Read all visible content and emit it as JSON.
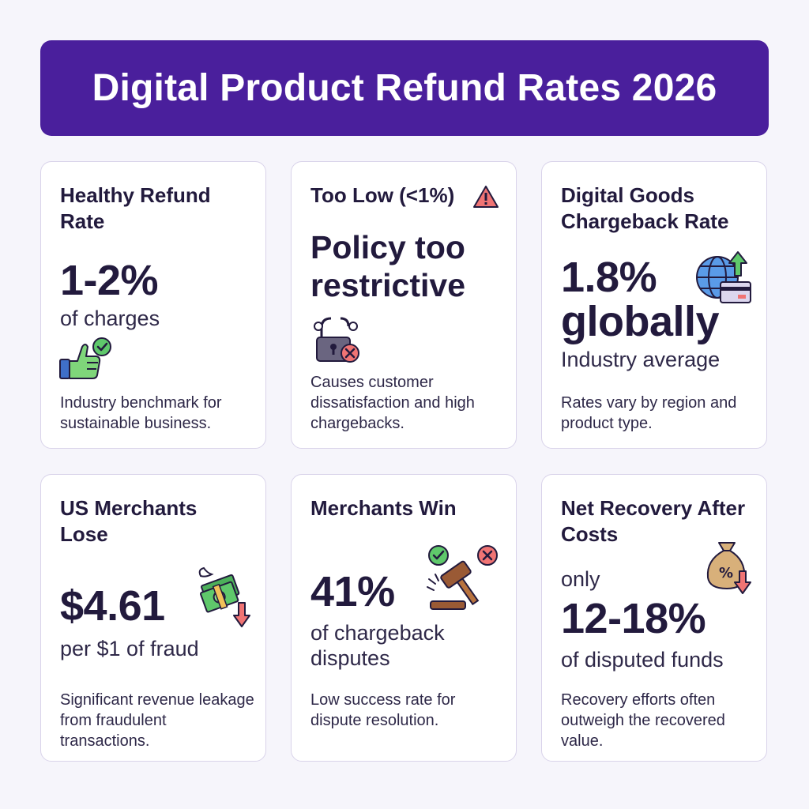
{
  "header": {
    "title": "Digital Product Refund Rates 2026"
  },
  "cards": [
    {
      "title": "Healthy Refund Rate",
      "value": "1-2%",
      "sub": "of charges",
      "note": "Industry benchmark for sustainable business.",
      "icon": "thumbs-up-check-icon"
    },
    {
      "title": "Too Low (<1%)",
      "value": "Policy too restrictive",
      "note": "Causes customer dissatisfaction and high chargebacks.",
      "icon": "broken-lock-icon"
    },
    {
      "title": "Digital Goods Chargeback Rate",
      "value": "1.8% globally",
      "sub": "Industry average",
      "note": "Rates vary by region and product type.",
      "icon": "globe-card-arrow-up-icon"
    },
    {
      "title": "US Merchants Lose",
      "value": "$4.61",
      "sub": "per $1 of fraud",
      "note": "Significant revenue leakage from fraudulent transactions.",
      "icon": "flying-money-down-icon"
    },
    {
      "title": "Merchants Win",
      "value": "41%",
      "sub": "of chargeback disputes",
      "note": "Low success rate for dispute resolution.",
      "icon": "gavel-icon"
    },
    {
      "title": "Net Recovery After Costs",
      "prefix": "only",
      "value": "12-18%",
      "sub": "of disputed funds",
      "note": "Recovery efforts often outweigh the recovered value.",
      "icon": "money-bag-down-icon"
    }
  ],
  "colors": {
    "banner": "#4a1f9c",
    "text": "#221a3d",
    "green": "#5fc86b",
    "red": "#e8555a",
    "blue": "#3f7fe0"
  }
}
